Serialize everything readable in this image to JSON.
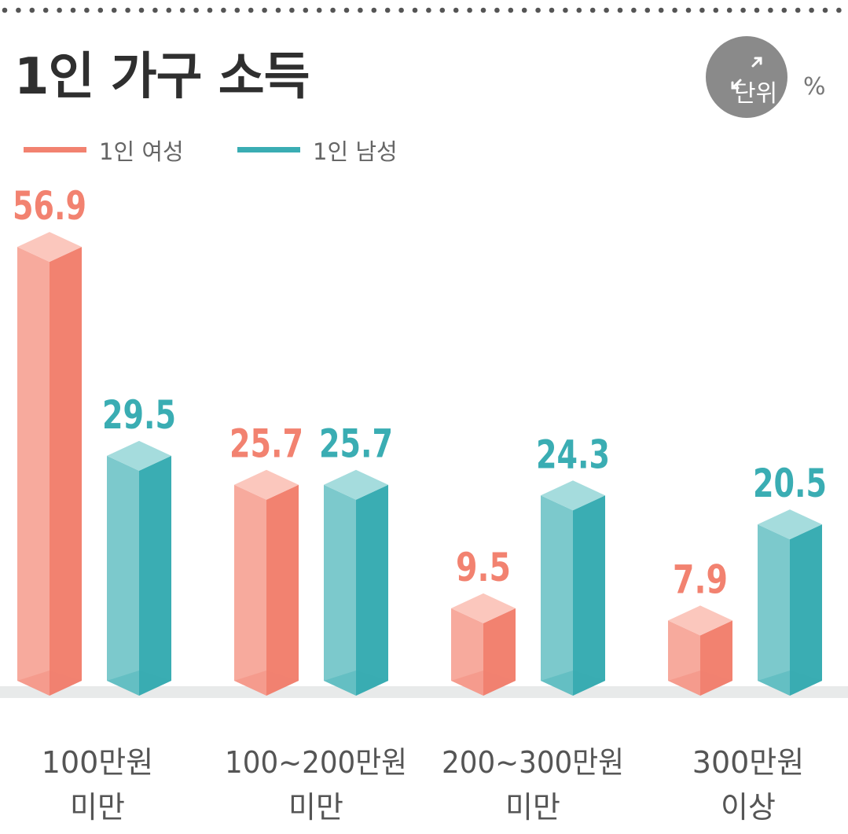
{
  "chart_data": {
    "type": "bar",
    "title": "1인 가구 소득",
    "unit": {
      "label": "단위",
      "symbol": "%"
    },
    "categories": [
      {
        "line1": "100만원",
        "line2": "미만"
      },
      {
        "line1": "100~200만원",
        "line2": "미만"
      },
      {
        "line1": "200~300만원",
        "line2": "미만"
      },
      {
        "line1": "300만원",
        "line2": "이상"
      }
    ],
    "series": [
      {
        "name": "1인 여성",
        "color": "#f28270",
        "light": "#f7aa9d",
        "top": "#fbc7bd",
        "values": [
          56.9,
          25.7,
          9.5,
          7.9
        ]
      },
      {
        "name": "1인 남성",
        "color": "#3aadb3",
        "light": "#7cc9cc",
        "top": "#a5dcdd",
        "values": [
          29.5,
          25.7,
          24.3,
          20.5
        ]
      }
    ],
    "ylim": [
      0,
      60
    ],
    "legend_position": "top-left",
    "grid": false
  }
}
